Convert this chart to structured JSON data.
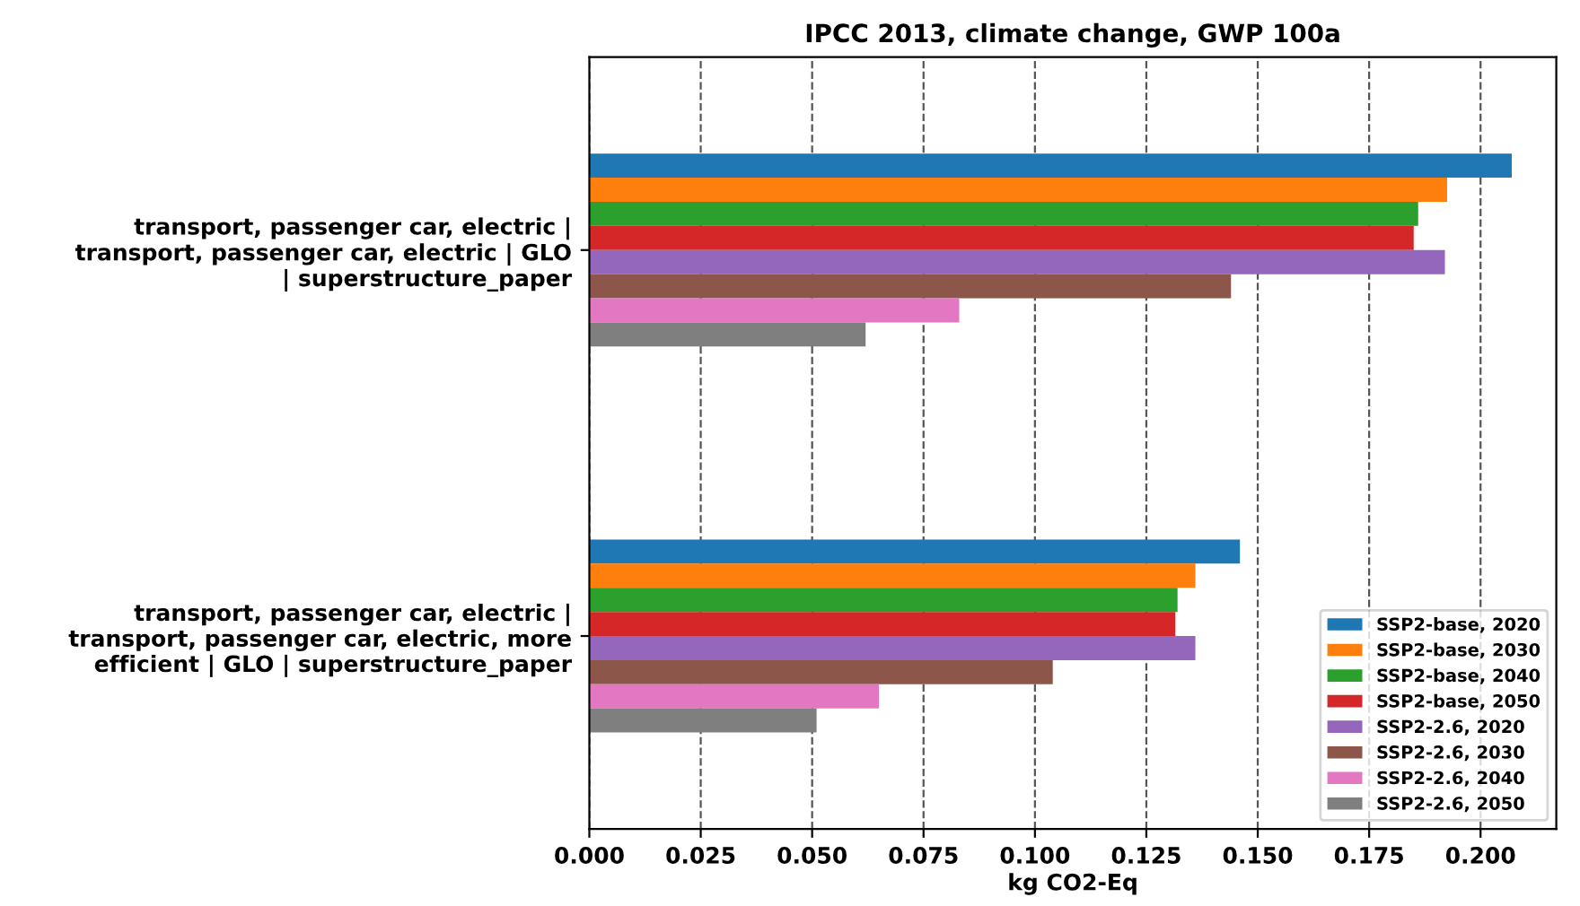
{
  "chart_data": {
    "type": "bar",
    "orientation": "horizontal",
    "title": "IPCC 2013, climate change, GWP 100a",
    "xlabel": "kg CO2-Eq",
    "categories": [
      "transport, passenger car, electric |\ntransport, passenger car, electric | GLO\n| superstructure_paper",
      "transport, passenger car, electric |\ntransport, passenger car, electric, more\nefficient | GLO | superstructure_paper"
    ],
    "series": [
      {
        "name": "SSP2-base, 2020",
        "color": "#1f77b4",
        "values": [
          0.207,
          0.146
        ]
      },
      {
        "name": "SSP2-base, 2030",
        "color": "#ff7f0e",
        "values": [
          0.1925,
          0.136
        ]
      },
      {
        "name": "SSP2-base, 2040",
        "color": "#2ca02c",
        "values": [
          0.186,
          0.132
        ]
      },
      {
        "name": "SSP2-base, 2050",
        "color": "#d62728",
        "values": [
          0.185,
          0.1315
        ]
      },
      {
        "name": "SSP2-2.6, 2020",
        "color": "#9467bd",
        "values": [
          0.192,
          0.136
        ]
      },
      {
        "name": "SSP2-2.6, 2030",
        "color": "#8c564b",
        "values": [
          0.144,
          0.104
        ]
      },
      {
        "name": "SSP2-2.6, 2040",
        "color": "#e377c2",
        "values": [
          0.083,
          0.065
        ]
      },
      {
        "name": "SSP2-2.6, 2050",
        "color": "#7f7f7f",
        "values": [
          0.062,
          0.051
        ]
      }
    ],
    "xlim": [
      0,
      0.217
    ],
    "xticks": [
      {
        "value": 0,
        "label": "0.000"
      },
      {
        "value": 0.025,
        "label": "0.025"
      },
      {
        "value": 0.05,
        "label": "0.050"
      },
      {
        "value": 0.075,
        "label": "0.075"
      },
      {
        "value": 0.1,
        "label": "0.100"
      },
      {
        "value": 0.125,
        "label": "0.125"
      },
      {
        "value": 0.15,
        "label": "0.150"
      },
      {
        "value": 0.175,
        "label": "0.175"
      },
      {
        "value": 0.2,
        "label": "0.200"
      }
    ],
    "grid": "x",
    "legend": "bottom right"
  }
}
